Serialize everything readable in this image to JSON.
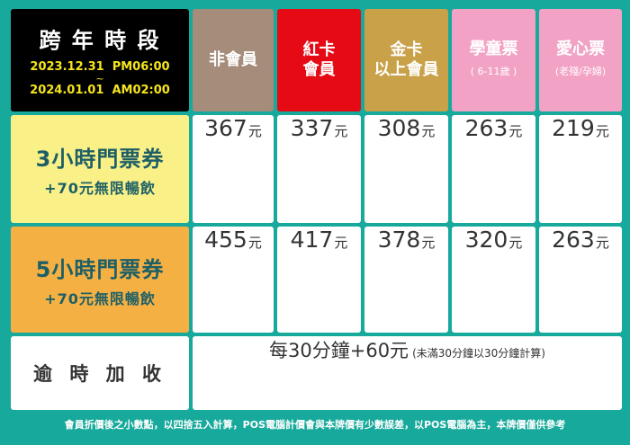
{
  "header": {
    "period": {
      "title": "跨 年 時 段",
      "start": "2023.12.31  PM06:00",
      "separator": "~",
      "end": "2024.01.01  AM02:00"
    },
    "columns": [
      {
        "lines": [
          "非會員"
        ],
        "color": "#a58c7b"
      },
      {
        "lines": [
          "紅卡",
          "會員"
        ],
        "color": "#e50a14"
      },
      {
        "lines": [
          "金卡",
          "以上會員"
        ],
        "color": "#c9a148"
      },
      {
        "lines": [
          "學童票"
        ],
        "note": "( 6-11歲 )",
        "color": "#f2a2c5"
      },
      {
        "lines": [
          "愛心票"
        ],
        "note": "(老殘/孕婦)",
        "color": "#f2a2c5"
      }
    ]
  },
  "rows": [
    {
      "label": "3小時門票券",
      "sub": "+70元無限暢飲",
      "color": "#f9f088",
      "prices": [
        {
          "amount": 367,
          "unit": "元"
        },
        {
          "amount": 337,
          "unit": "元"
        },
        {
          "amount": 308,
          "unit": "元"
        },
        {
          "amount": 263,
          "unit": "元"
        },
        {
          "amount": 219,
          "unit": "元"
        }
      ]
    },
    {
      "label": "5小時門票券",
      "sub": "+70元無限暢飲",
      "color": "#f5b044",
      "prices": [
        {
          "amount": 455,
          "unit": "元"
        },
        {
          "amount": 417,
          "unit": "元"
        },
        {
          "amount": 378,
          "unit": "元"
        },
        {
          "amount": 320,
          "unit": "元"
        },
        {
          "amount": 263,
          "unit": "元"
        }
      ]
    }
  ],
  "overtime": {
    "label": "逾 時 加 收",
    "rate": "每30分鐘+60元",
    "note": "(未滿30分鐘以30分鐘計算)"
  },
  "footer": "會員折價後之小數點，以四捨五入計算，POS電腦計價會與本牌價有少數誤差，以POS電腦為主，本牌價僅供參考"
}
